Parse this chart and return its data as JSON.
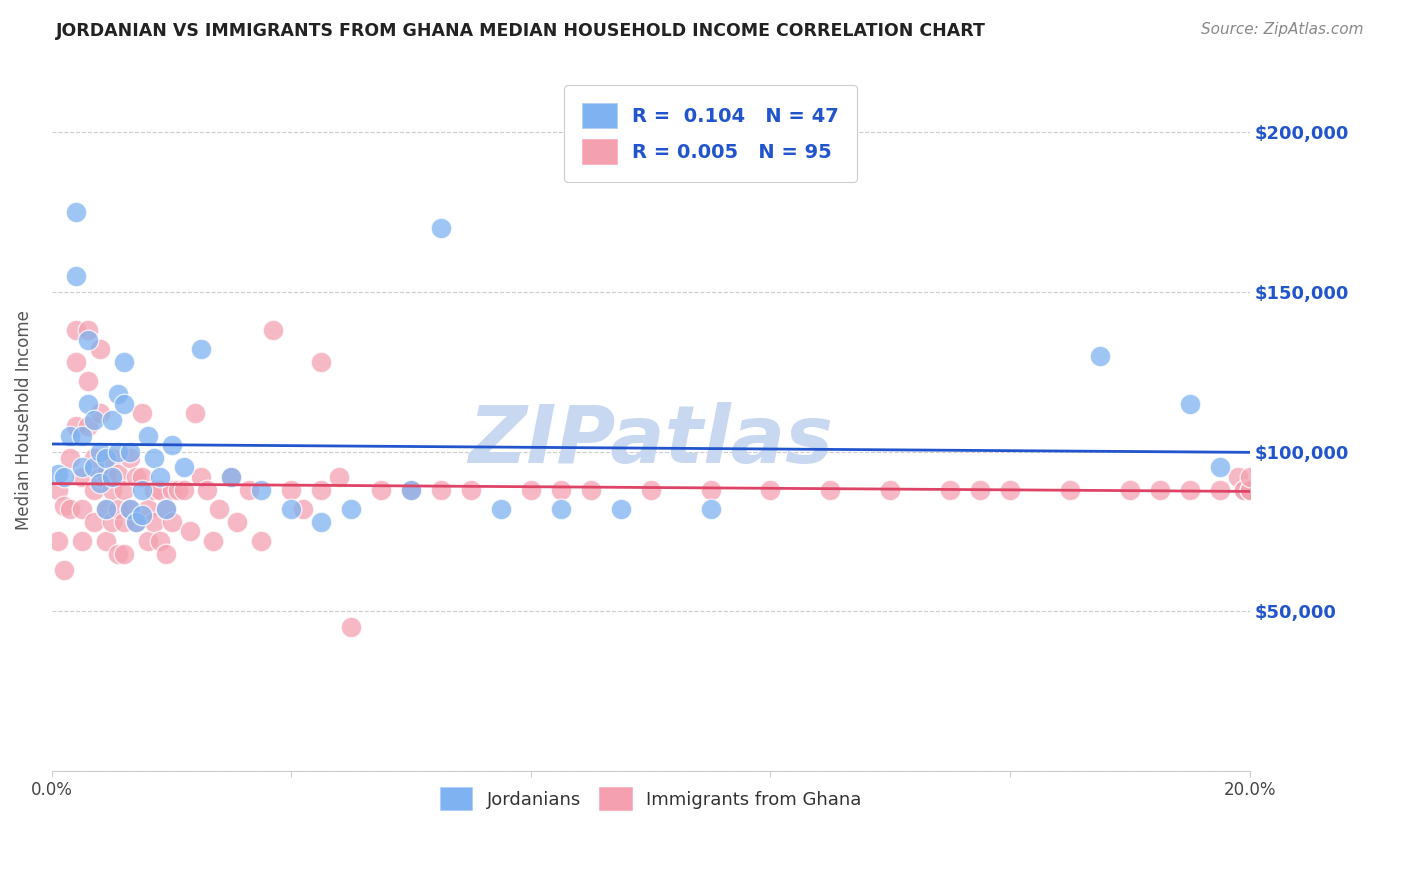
{
  "title": "JORDANIAN VS IMMIGRANTS FROM GHANA MEDIAN HOUSEHOLD INCOME CORRELATION CHART",
  "source": "Source: ZipAtlas.com",
  "ylabel": "Median Household Income",
  "yticks": [
    0,
    50000,
    100000,
    150000,
    200000
  ],
  "ytick_labels": [
    "",
    "$50,000",
    "$100,000",
    "$150,000",
    "$200,000"
  ],
  "xlim": [
    0.0,
    0.2
  ],
  "ylim": [
    0,
    220000
  ],
  "legend1_R": "0.104",
  "legend1_N": "47",
  "legend2_R": "0.005",
  "legend2_N": "95",
  "blue_color": "#7EB2F0",
  "pink_color": "#F4A0B0",
  "blue_line_color": "#2255CC",
  "pink_line_color": "#DD4466",
  "watermark": "ZIPatlas",
  "watermark_color": "#C8D8F0",
  "jordanians_x": [
    0.001,
    0.002,
    0.003,
    0.004,
    0.004,
    0.005,
    0.005,
    0.006,
    0.006,
    0.007,
    0.007,
    0.008,
    0.008,
    0.009,
    0.009,
    0.01,
    0.01,
    0.011,
    0.011,
    0.012,
    0.012,
    0.013,
    0.013,
    0.014,
    0.015,
    0.015,
    0.016,
    0.017,
    0.018,
    0.019,
    0.02,
    0.022,
    0.025,
    0.03,
    0.035,
    0.04,
    0.045,
    0.05,
    0.06,
    0.065,
    0.075,
    0.085,
    0.095,
    0.11,
    0.175,
    0.19,
    0.195
  ],
  "jordanians_y": [
    93000,
    92000,
    105000,
    175000,
    155000,
    105000,
    95000,
    135000,
    115000,
    110000,
    95000,
    100000,
    90000,
    98000,
    82000,
    110000,
    92000,
    100000,
    118000,
    128000,
    115000,
    100000,
    82000,
    78000,
    80000,
    88000,
    105000,
    98000,
    92000,
    82000,
    102000,
    95000,
    132000,
    92000,
    88000,
    82000,
    78000,
    82000,
    88000,
    170000,
    82000,
    82000,
    82000,
    82000,
    130000,
    115000,
    95000
  ],
  "ghana_x": [
    0.001,
    0.001,
    0.002,
    0.002,
    0.003,
    0.003,
    0.004,
    0.004,
    0.004,
    0.005,
    0.005,
    0.005,
    0.006,
    0.006,
    0.006,
    0.007,
    0.007,
    0.007,
    0.008,
    0.008,
    0.008,
    0.009,
    0.009,
    0.009,
    0.01,
    0.01,
    0.01,
    0.011,
    0.011,
    0.011,
    0.012,
    0.012,
    0.012,
    0.013,
    0.013,
    0.014,
    0.014,
    0.015,
    0.015,
    0.016,
    0.016,
    0.017,
    0.017,
    0.018,
    0.018,
    0.019,
    0.019,
    0.02,
    0.02,
    0.021,
    0.022,
    0.023,
    0.024,
    0.025,
    0.026,
    0.027,
    0.028,
    0.03,
    0.031,
    0.033,
    0.035,
    0.037,
    0.04,
    0.042,
    0.045,
    0.048,
    0.05,
    0.055,
    0.06,
    0.065,
    0.045,
    0.07,
    0.08,
    0.085,
    0.09,
    0.1,
    0.11,
    0.12,
    0.13,
    0.14,
    0.15,
    0.155,
    0.16,
    0.17,
    0.18,
    0.185,
    0.19,
    0.195,
    0.198,
    0.199,
    0.199,
    0.2,
    0.2,
    0.2,
    0.2
  ],
  "ghana_y": [
    88000,
    72000,
    83000,
    63000,
    98000,
    82000,
    138000,
    128000,
    108000,
    92000,
    82000,
    72000,
    138000,
    122000,
    108000,
    98000,
    88000,
    78000,
    132000,
    112000,
    92000,
    93000,
    82000,
    72000,
    98000,
    88000,
    78000,
    93000,
    82000,
    68000,
    88000,
    78000,
    68000,
    98000,
    82000,
    92000,
    78000,
    112000,
    92000,
    82000,
    72000,
    88000,
    78000,
    88000,
    72000,
    82000,
    68000,
    88000,
    78000,
    88000,
    88000,
    75000,
    112000,
    92000,
    88000,
    72000,
    82000,
    92000,
    78000,
    88000,
    72000,
    138000,
    88000,
    82000,
    128000,
    92000,
    45000,
    88000,
    88000,
    88000,
    88000,
    88000,
    88000,
    88000,
    88000,
    88000,
    88000,
    88000,
    88000,
    88000,
    88000,
    88000,
    88000,
    88000,
    88000,
    88000,
    88000,
    88000,
    92000,
    88000,
    88000,
    88000,
    88000,
    88000,
    92000
  ]
}
